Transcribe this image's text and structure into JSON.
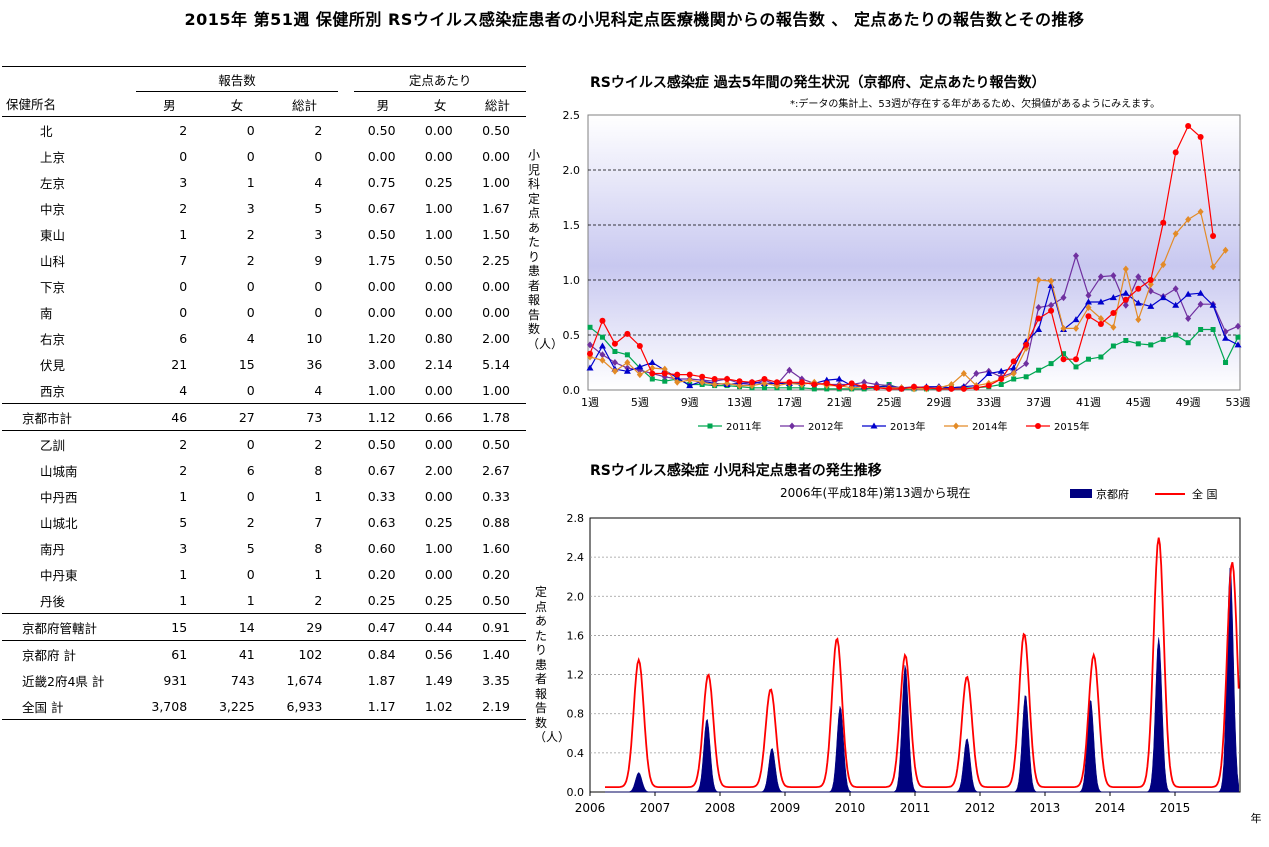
{
  "page_title": "2015年 第51週 保健所別 RSウイルス感染症患者の小児科定点医療機関からの報告数 、 定点あたりの報告数とその推移",
  "table": {
    "group_reports": "報告数",
    "group_per_sentinel": "定点あたり",
    "col_name": "保健所名",
    "col_male": "男",
    "col_female": "女",
    "col_total": "総計",
    "rows": [
      {
        "name": "北",
        "m": "2",
        "f": "0",
        "t": "2",
        "pm": "0.50",
        "pf": "0.00",
        "pt": "0.50",
        "kind": "city"
      },
      {
        "name": "上京",
        "m": "0",
        "f": "0",
        "t": "0",
        "pm": "0.00",
        "pf": "0.00",
        "pt": "0.00",
        "kind": "city"
      },
      {
        "name": "左京",
        "m": "3",
        "f": "1",
        "t": "4",
        "pm": "0.75",
        "pf": "0.25",
        "pt": "1.00",
        "kind": "city"
      },
      {
        "name": "中京",
        "m": "2",
        "f": "3",
        "t": "5",
        "pm": "0.67",
        "pf": "1.00",
        "pt": "1.67",
        "kind": "city"
      },
      {
        "name": "東山",
        "m": "1",
        "f": "2",
        "t": "3",
        "pm": "0.50",
        "pf": "1.00",
        "pt": "1.50",
        "kind": "city"
      },
      {
        "name": "山科",
        "m": "7",
        "f": "2",
        "t": "9",
        "pm": "1.75",
        "pf": "0.50",
        "pt": "2.25",
        "kind": "city"
      },
      {
        "name": "下京",
        "m": "0",
        "f": "0",
        "t": "0",
        "pm": "0.00",
        "pf": "0.00",
        "pt": "0.00",
        "kind": "city"
      },
      {
        "name": "南",
        "m": "0",
        "f": "0",
        "t": "0",
        "pm": "0.00",
        "pf": "0.00",
        "pt": "0.00",
        "kind": "city"
      },
      {
        "name": "右京",
        "m": "6",
        "f": "4",
        "t": "10",
        "pm": "1.20",
        "pf": "0.80",
        "pt": "2.00",
        "kind": "city"
      },
      {
        "name": "伏見",
        "m": "21",
        "f": "15",
        "t": "36",
        "pm": "3.00",
        "pf": "2.14",
        "pt": "5.14",
        "kind": "city"
      },
      {
        "name": "西京",
        "m": "4",
        "f": "0",
        "t": "4",
        "pm": "1.00",
        "pf": "0.00",
        "pt": "1.00",
        "kind": "city"
      },
      {
        "name": "京都市計",
        "m": "46",
        "f": "27",
        "t": "73",
        "pm": "1.12",
        "pf": "0.66",
        "pt": "1.78",
        "kind": "sum"
      },
      {
        "name": "乙訓",
        "m": "2",
        "f": "0",
        "t": "2",
        "pm": "0.50",
        "pf": "0.00",
        "pt": "0.50",
        "kind": "pref"
      },
      {
        "name": "山城南",
        "m": "2",
        "f": "6",
        "t": "8",
        "pm": "0.67",
        "pf": "2.00",
        "pt": "2.67",
        "kind": "pref"
      },
      {
        "name": "中丹西",
        "m": "1",
        "f": "0",
        "t": "1",
        "pm": "0.33",
        "pf": "0.00",
        "pt": "0.33",
        "kind": "pref"
      },
      {
        "name": "山城北",
        "m": "5",
        "f": "2",
        "t": "7",
        "pm": "0.63",
        "pf": "0.25",
        "pt": "0.88",
        "kind": "pref"
      },
      {
        "name": "南丹",
        "m": "3",
        "f": "5",
        "t": "8",
        "pm": "0.60",
        "pf": "1.00",
        "pt": "1.60",
        "kind": "pref"
      },
      {
        "name": "中丹東",
        "m": "1",
        "f": "0",
        "t": "1",
        "pm": "0.20",
        "pf": "0.00",
        "pt": "0.20",
        "kind": "pref"
      },
      {
        "name": "丹後",
        "m": "1",
        "f": "1",
        "t": "2",
        "pm": "0.25",
        "pf": "0.25",
        "pt": "0.50",
        "kind": "pref"
      },
      {
        "name": "京都府管轄計",
        "m": "15",
        "f": "14",
        "t": "29",
        "pm": "0.47",
        "pf": "0.44",
        "pt": "0.91",
        "kind": "sum"
      },
      {
        "name": "京都府 計",
        "m": "61",
        "f": "41",
        "t": "102",
        "pm": "0.84",
        "pf": "0.56",
        "pt": "1.40",
        "kind": "total"
      },
      {
        "name": "近畿2府4県 計",
        "m": "931",
        "f": "743",
        "t": "1,674",
        "pm": "1.87",
        "pf": "1.49",
        "pt": "3.35",
        "kind": "total"
      },
      {
        "name": "全国 計",
        "m": "3,708",
        "f": "3,225",
        "t": "6,933",
        "pm": "1.17",
        "pf": "1.02",
        "pt": "2.19",
        "kind": "total"
      }
    ]
  },
  "chart_data": [
    {
      "type": "line",
      "title": "RSウイルス感染症 過去5年間の発生状況（京都府、定点あたり報告数）",
      "note": "*:データの集計上、53週が存在する年があるため、欠損値があるようにみえます。",
      "ylabel": "小児科定点あたり患者報告数（人）",
      "ylim": [
        0,
        2.5
      ],
      "yticks": [
        "0.0",
        "0.5",
        "1.0",
        "1.5",
        "2.0",
        "2.5"
      ],
      "xticks": [
        "1週",
        "5週",
        "9週",
        "13週",
        "17週",
        "21週",
        "25週",
        "29週",
        "33週",
        "37週",
        "41週",
        "45週",
        "49週",
        "53週"
      ],
      "series": [
        {
          "name": "2011年",
          "color": "#00a651",
          "marker": "square",
          "values": [
            0.57,
            0.48,
            0.35,
            0.32,
            0.2,
            0.1,
            0.08,
            0.1,
            0.05,
            0.05,
            0.04,
            0.04,
            0.03,
            0.02,
            0.02,
            0.02,
            0.02,
            0.02,
            0.01,
            0.01,
            0.01,
            0.01,
            0.01,
            0.02,
            0.05,
            0.01,
            0.01,
            0.01,
            0.01,
            0.02,
            0.02,
            0.02,
            0.03,
            0.05,
            0.1,
            0.12,
            0.18,
            0.24,
            0.33,
            0.21,
            0.28,
            0.3,
            0.4,
            0.45,
            0.42,
            0.41,
            0.46,
            0.5,
            0.43,
            0.55,
            0.55,
            0.25,
            0.48
          ]
        },
        {
          "name": "2012年",
          "color": "#7030a0",
          "marker": "diamond",
          "values": [
            0.41,
            0.32,
            0.25,
            0.2,
            0.18,
            0.15,
            0.12,
            0.1,
            0.1,
            0.09,
            0.08,
            0.1,
            0.06,
            0.05,
            0.09,
            0.05,
            0.18,
            0.1,
            0.06,
            0.05,
            0.05,
            0.05,
            0.07,
            0.05,
            0.04,
            0.02,
            0.03,
            0.02,
            0.03,
            0.02,
            0.03,
            0.15,
            0.17,
            0.12,
            0.16,
            0.24,
            0.75,
            0.77,
            0.84,
            1.22,
            0.86,
            1.03,
            1.04,
            0.77,
            1.03,
            0.9,
            0.85,
            0.92,
            0.65,
            0.78,
            0.78,
            0.53,
            0.58
          ]
        },
        {
          "name": "2013年",
          "color": "#0000cc",
          "marker": "triangle",
          "values": [
            0.2,
            0.4,
            0.19,
            0.17,
            0.21,
            0.25,
            0.18,
            0.11,
            0.04,
            0.08,
            0.06,
            0.05,
            0.06,
            0.07,
            0.06,
            0.06,
            0.06,
            0.06,
            0.06,
            0.09,
            0.1,
            0.04,
            0.03,
            0.03,
            0.03,
            0.02,
            0.02,
            0.03,
            0.03,
            0.02,
            0.03,
            0.04,
            0.15,
            0.17,
            0.2,
            0.44,
            0.55,
            0.95,
            0.55,
            0.64,
            0.8,
            0.8,
            0.84,
            0.88,
            0.79,
            0.76,
            0.84,
            0.77,
            0.87,
            0.88,
            0.77,
            0.47,
            0.41
          ]
        },
        {
          "name": "2014年",
          "color": "#e38b27",
          "marker": "diamond",
          "values": [
            0.3,
            0.27,
            0.17,
            0.25,
            0.14,
            0.2,
            0.19,
            0.07,
            0.09,
            0.07,
            0.05,
            0.06,
            0.04,
            0.04,
            0.06,
            0.04,
            0.06,
            0.05,
            0.07,
            0.04,
            0.04,
            0.02,
            0.03,
            0.02,
            0.02,
            0.02,
            0.01,
            0.01,
            0.02,
            0.05,
            0.15,
            0.04,
            0.06,
            0.1,
            0.15,
            0.38,
            1.0,
            0.99,
            0.56,
            0.56,
            0.75,
            0.65,
            0.57,
            1.1,
            0.64,
            0.96,
            1.14,
            1.42,
            1.55,
            1.62,
            1.12,
            1.27,
            null
          ]
        },
        {
          "name": "2015年",
          "color": "#ff0000",
          "marker": "circle",
          "values": [
            0.33,
            0.63,
            0.42,
            0.51,
            0.4,
            0.15,
            0.15,
            0.14,
            0.14,
            0.12,
            0.1,
            0.1,
            0.08,
            0.07,
            0.1,
            0.07,
            0.07,
            0.07,
            0.05,
            0.06,
            0.03,
            0.06,
            0.03,
            0.02,
            0.01,
            0.01,
            0.03,
            0.02,
            0.01,
            0.01,
            0.01,
            0.02,
            0.04,
            0.1,
            0.26,
            0.41,
            0.65,
            0.72,
            0.28,
            0.28,
            0.67,
            0.6,
            0.7,
            0.82,
            0.92,
            1.0,
            1.52,
            2.16,
            2.4,
            2.3,
            1.4,
            null,
            null
          ]
        }
      ]
    },
    {
      "type": "area",
      "title": "RSウイルス感染症 小児科定点患者の発生推移",
      "subtitle": "2006年(平成18年)第13週から現在",
      "ylabel": "定点あたり患者報告数（人）",
      "xlabel": "年",
      "ylim": [
        0,
        2.8
      ],
      "yticks": [
        "0.0",
        "0.4",
        "0.8",
        "1.2",
        "1.6",
        "2.0",
        "2.4",
        "2.8"
      ],
      "xticks": [
        "2006",
        "2007",
        "2008",
        "2009",
        "2010",
        "2011",
        "2012",
        "2013",
        "2014",
        "2015"
      ],
      "series": [
        {
          "name": "京都府",
          "color": "#000080",
          "kind": "bar",
          "peaks": [
            {
              "year": 2006.75,
              "value": 0.2
            },
            {
              "year": 2007.8,
              "value": 0.75
            },
            {
              "year": 2008.8,
              "value": 0.45
            },
            {
              "year": 2009.85,
              "value": 0.88
            },
            {
              "year": 2010.85,
              "value": 1.3
            },
            {
              "year": 2011.8,
              "value": 0.55
            },
            {
              "year": 2012.7,
              "value": 1.0
            },
            {
              "year": 2013.7,
              "value": 0.95
            },
            {
              "year": 2014.75,
              "value": 1.58
            },
            {
              "year": 2015.85,
              "value": 2.3
            }
          ]
        },
        {
          "name": "全 国",
          "color": "#ff0000",
          "kind": "line",
          "peaks": [
            {
              "year": 2006.75,
              "value": 1.35
            },
            {
              "year": 2007.82,
              "value": 1.2
            },
            {
              "year": 2008.78,
              "value": 1.05
            },
            {
              "year": 2009.8,
              "value": 1.57
            },
            {
              "year": 2010.85,
              "value": 1.4
            },
            {
              "year": 2011.8,
              "value": 1.18
            },
            {
              "year": 2012.68,
              "value": 1.62
            },
            {
              "year": 2013.75,
              "value": 1.4
            },
            {
              "year": 2014.75,
              "value": 2.6
            },
            {
              "year": 2015.88,
              "value": 2.35
            }
          ]
        }
      ]
    }
  ]
}
